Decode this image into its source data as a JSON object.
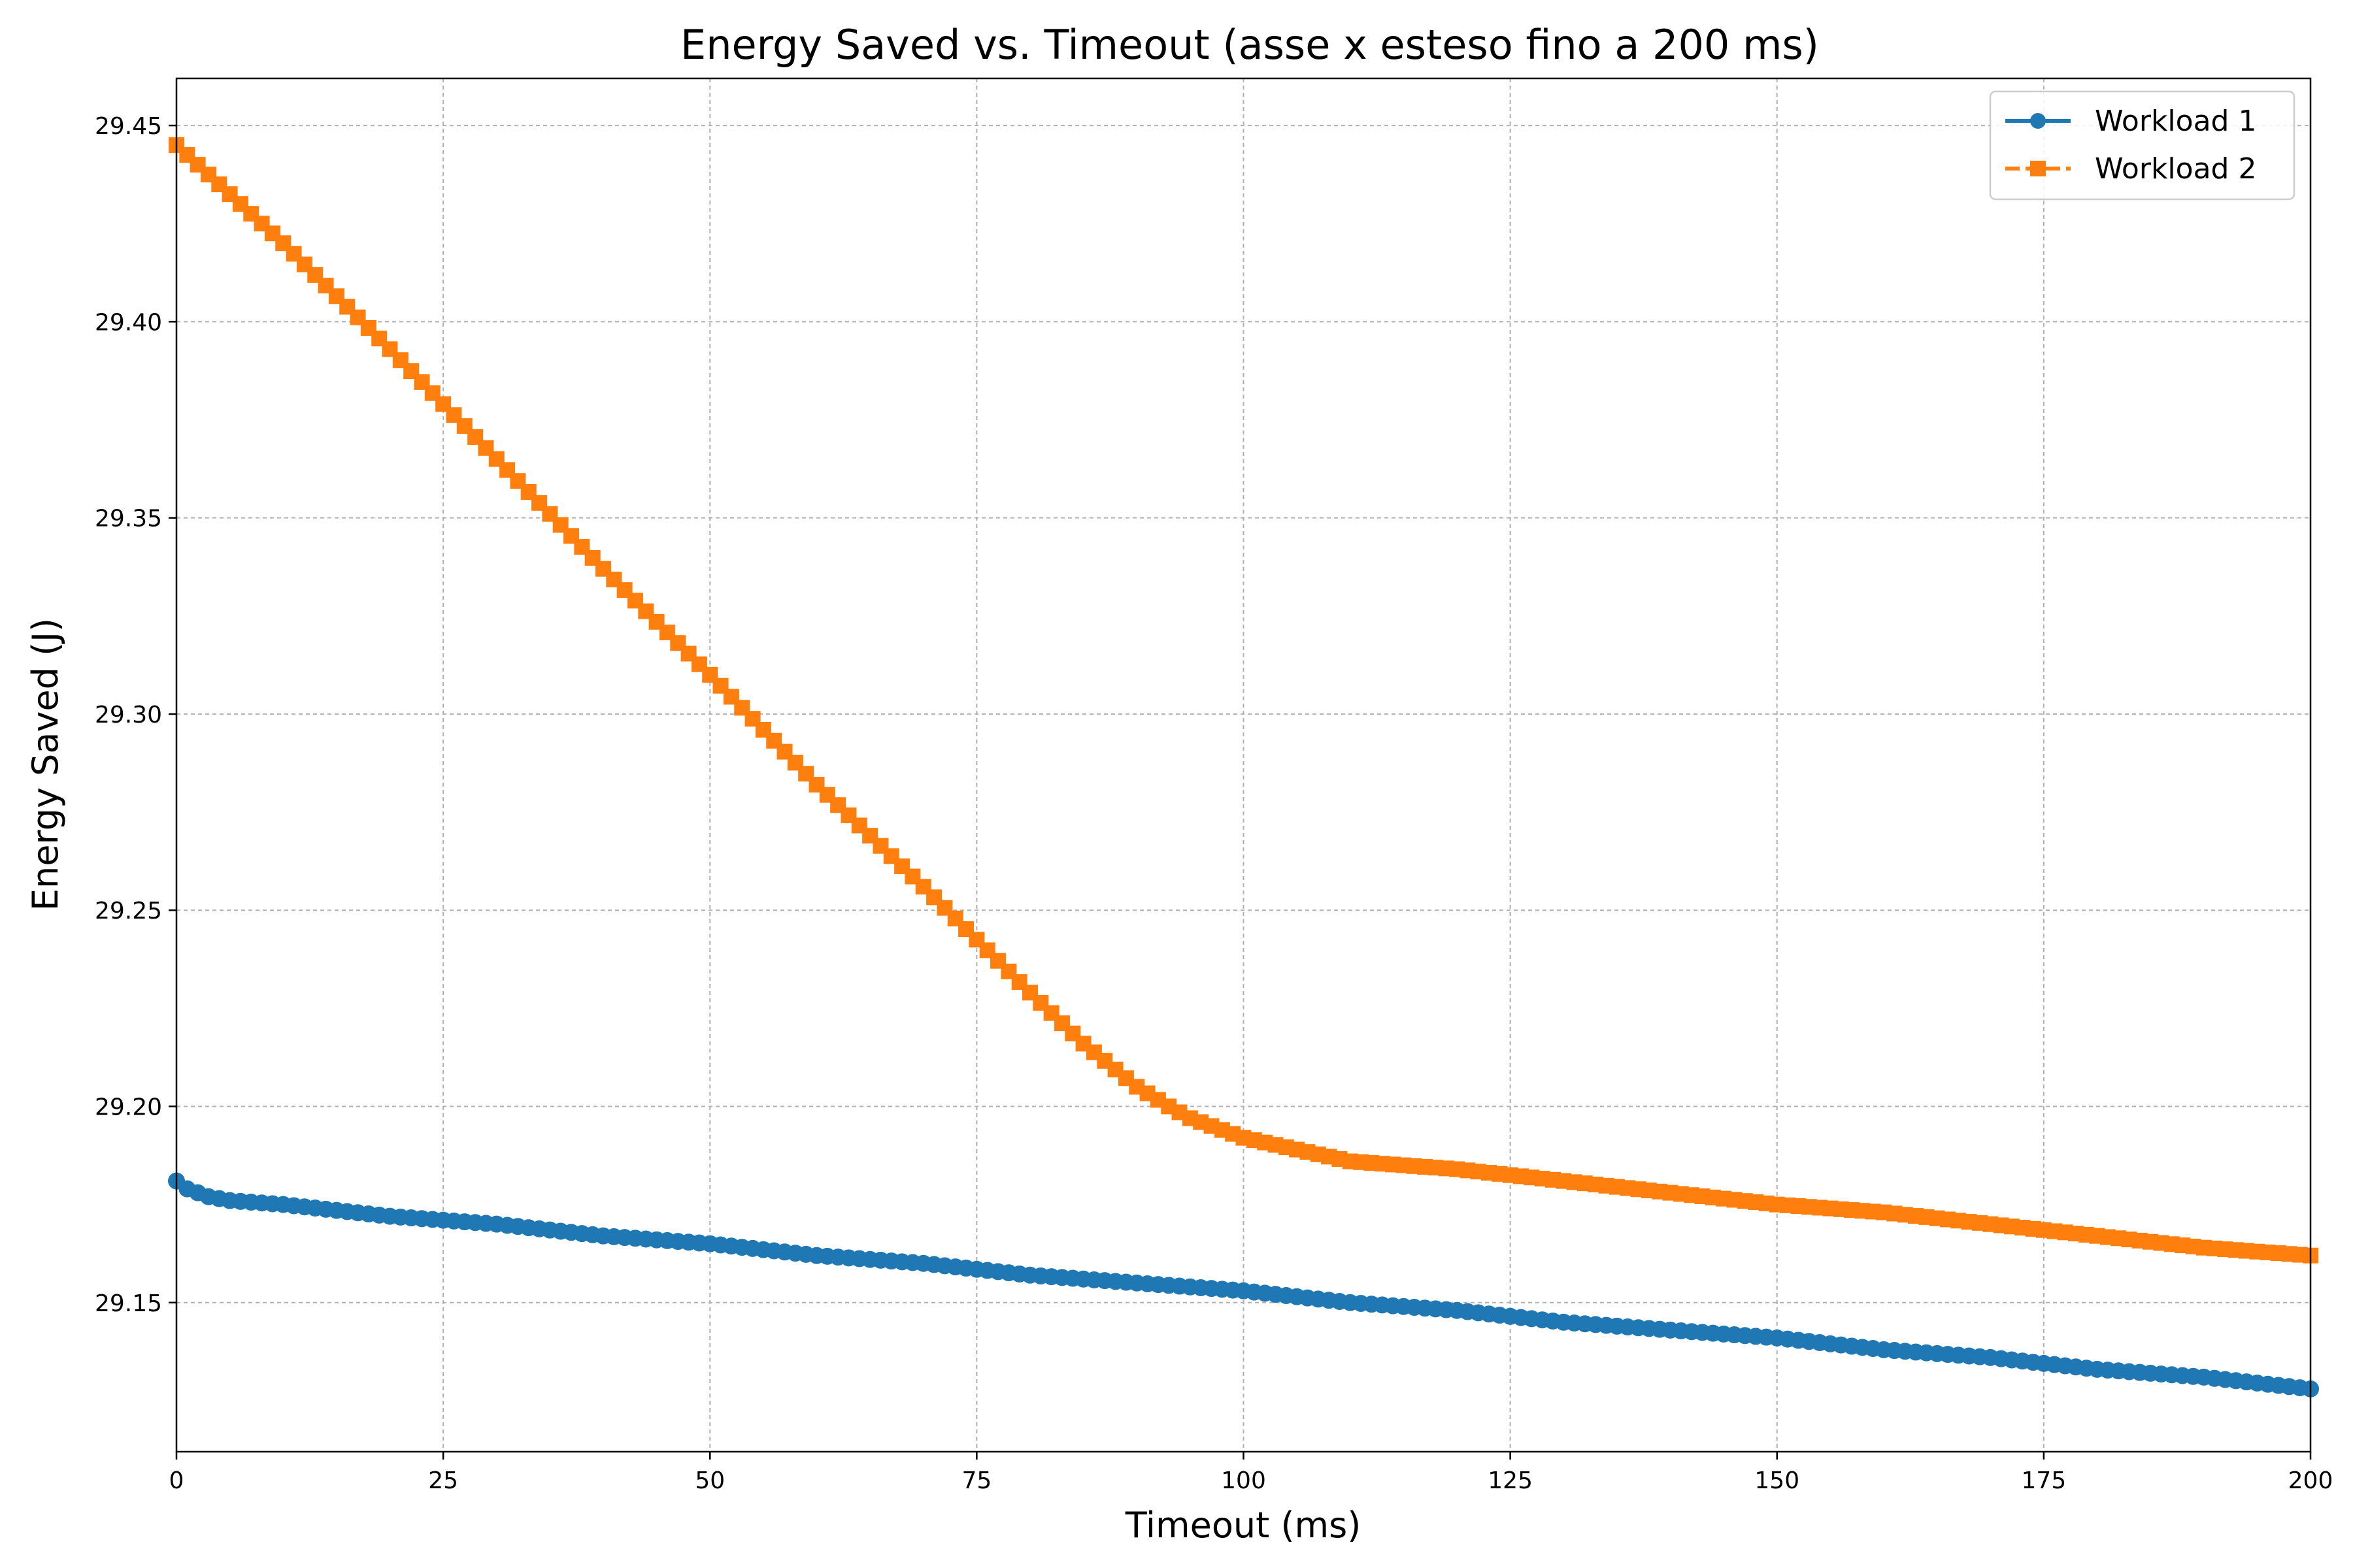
{
  "chart_data": {
    "type": "line",
    "title": "Energy Saved vs. Timeout (asse x esteso fino a 200 ms)",
    "xlabel": "Timeout (ms)",
    "ylabel": "Energy Saved (J)",
    "xlim": [
      0,
      200
    ],
    "ylim": [
      29.112,
      29.462
    ],
    "x_ticks": [
      0,
      25,
      50,
      75,
      100,
      125,
      150,
      175,
      200
    ],
    "x_tick_labels": [
      "0",
      "25",
      "50",
      "75",
      "100",
      "125",
      "150",
      "175",
      "200"
    ],
    "y_ticks": [
      29.15,
      29.2,
      29.25,
      29.3,
      29.35,
      29.4,
      29.45
    ],
    "y_tick_labels": [
      "29.15",
      "29.20",
      "29.25",
      "29.30",
      "29.35",
      "29.40",
      "29.45"
    ],
    "grid": true,
    "legend_position": "top-right",
    "series": [
      {
        "name": "Workload 1",
        "color": "#1f77b4",
        "marker": "circle",
        "line_style": "solid",
        "points": [
          [
            0,
            29.181
          ],
          [
            1,
            29.179
          ],
          [
            2,
            29.178
          ],
          [
            3,
            29.177
          ],
          [
            5,
            29.176
          ],
          [
            10,
            29.175
          ],
          [
            20,
            29.172
          ],
          [
            30,
            29.17
          ],
          [
            40,
            29.167
          ],
          [
            50,
            29.165
          ],
          [
            60,
            29.162
          ],
          [
            70,
            29.16
          ],
          [
            80,
            29.157
          ],
          [
            90,
            29.155
          ],
          [
            100,
            29.153
          ],
          [
            110,
            29.15
          ],
          [
            120,
            29.148
          ],
          [
            130,
            29.145
          ],
          [
            140,
            29.143
          ],
          [
            150,
            29.141
          ],
          [
            160,
            29.138
          ],
          [
            170,
            29.136
          ],
          [
            180,
            29.133
          ],
          [
            190,
            29.131
          ],
          [
            200,
            29.128
          ]
        ]
      },
      {
        "name": "Workload 2",
        "color": "#ff7f0e",
        "marker": "square",
        "line_style": "dashed",
        "points": [
          [
            0,
            29.445
          ],
          [
            10,
            29.42
          ],
          [
            20,
            29.393
          ],
          [
            30,
            29.365
          ],
          [
            40,
            29.337
          ],
          [
            50,
            29.31
          ],
          [
            60,
            29.282
          ],
          [
            70,
            29.256
          ],
          [
            80,
            29.229
          ],
          [
            85,
            29.216
          ],
          [
            90,
            29.205
          ],
          [
            93,
            29.2
          ],
          [
            95,
            29.197
          ],
          [
            100,
            29.192
          ],
          [
            105,
            29.189
          ],
          [
            110,
            29.186
          ],
          [
            120,
            29.184
          ],
          [
            130,
            29.181
          ],
          [
            140,
            29.178
          ],
          [
            150,
            29.175
          ],
          [
            160,
            29.173
          ],
          [
            170,
            29.17
          ],
          [
            180,
            29.167
          ],
          [
            190,
            29.164
          ],
          [
            200,
            29.162
          ]
        ]
      }
    ]
  }
}
